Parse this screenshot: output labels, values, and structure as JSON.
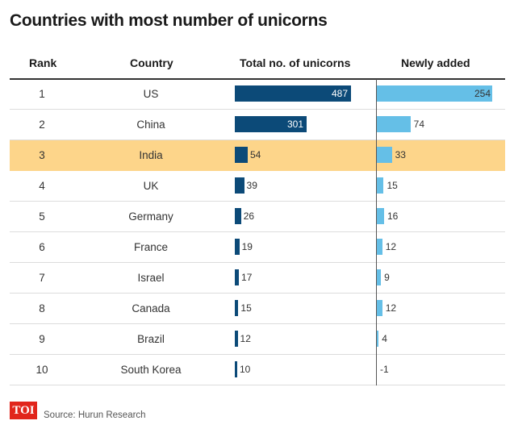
{
  "title": "Countries with most number of unicorns",
  "headers": {
    "rank": "Rank",
    "country": "Country",
    "total": "Total no. of unicorns",
    "new": "Newly added"
  },
  "highlight_color": "#fdd58a",
  "colors": {
    "total": "#0c4a78",
    "new": "#65bfe7"
  },
  "chart_data": {
    "type": "bar",
    "categories": [
      "US",
      "China",
      "India",
      "UK",
      "Germany",
      "France",
      "Israel",
      "Canada",
      "Brazil",
      "South Korea"
    ],
    "ranks": [
      "1",
      "2",
      "3",
      "4",
      "5",
      "6",
      "7",
      "8",
      "9",
      "10"
    ],
    "series": [
      {
        "values": [
          487,
          301,
          54,
          39,
          26,
          19,
          17,
          15,
          12,
          10
        ]
      },
      {
        "values": [
          254,
          74,
          33,
          15,
          16,
          12,
          9,
          12,
          4,
          -1
        ]
      }
    ],
    "highlighted_category": "India"
  },
  "footer": {
    "logo_text": "TOI",
    "source": "Source: Hurun Research"
  }
}
